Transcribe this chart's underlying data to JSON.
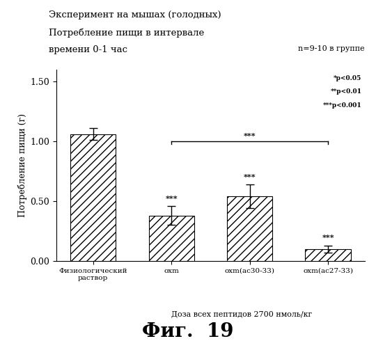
{
  "title_line1": "Эксперимент на мышах (голодных)",
  "title_line2": "Потребление пищи в интервале",
  "title_line3": "времени 0-1 час",
  "n_label": "n=9-10 в группе",
  "ylabel": "Потребление пищи (г)",
  "xlabel_dose": "Доза всех пептидов 2700 нмоль/кг",
  "categories": [
    "Физиологический\nраствор",
    "oxm",
    "oxm(ac30-33)",
    "oxm(ac27-33)"
  ],
  "values": [
    1.06,
    0.38,
    0.54,
    0.1
  ],
  "errors": [
    0.05,
    0.08,
    0.1,
    0.03
  ],
  "ylim": [
    0,
    1.6
  ],
  "yticks": [
    0.0,
    0.5,
    1.0,
    1.5
  ],
  "hatch": "///",
  "significance_stars": [
    "",
    "***",
    "***",
    "***"
  ],
  "bracket_stars": "***",
  "legend_entries": [
    "*p<0.05",
    "**p<0.01",
    "***p<0.001"
  ],
  "fig_label": "Фиг.  19",
  "background_color": "#ffffff"
}
